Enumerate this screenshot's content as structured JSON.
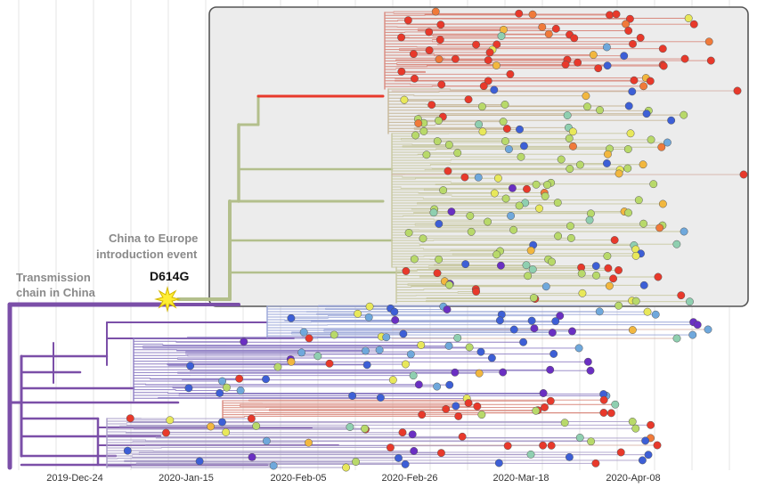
{
  "axis": {
    "ticks": [
      "2019-Dec-24",
      "2020-Jan-15",
      "2020-Feb-05",
      "2020-Feb-26",
      "2020-Mar-18",
      "2020-Apr-08"
    ]
  },
  "annotations": {
    "china_chain": [
      "Transmission",
      "chain in China"
    ],
    "europe_intro": [
      "China to Europe",
      "introduction event"
    ],
    "mutation": "D614G"
  },
  "colors": {
    "china_clade": "#7b4fa8",
    "europe_trunk": "#b3bf8c",
    "europe_box_fill": "#ececec",
    "europe_box_stroke": "#555555",
    "mutation_star": "#ffee33",
    "tip_palette": [
      "#e8392b",
      "#f07a3a",
      "#f2b73f",
      "#e8e85a",
      "#b8d96a",
      "#8fcfb0",
      "#6fa8dc",
      "#3d5fd6",
      "#6a2fc2"
    ]
  },
  "icons": {
    "mutation_marker": "star-burst-icon"
  }
}
